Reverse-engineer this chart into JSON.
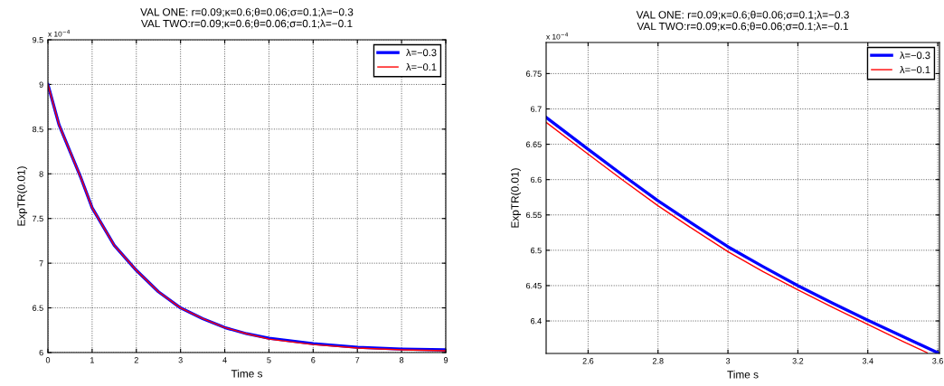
{
  "chart_data": [
    {
      "type": "line",
      "title": "VAL ONE: r=0.09;κ=0.6;θ=0.06;σ=0.1;λ=−0.3\nVAL TWO:r=0.09;κ=0.6;θ=0.06;σ=0.1;λ=−0.1",
      "xlabel": "Time s",
      "ylabel": "ExpTR(0.01)",
      "x": [
        0,
        0.25,
        0.5,
        0.75,
        1,
        1.5,
        2,
        2.5,
        3,
        3.5,
        4,
        4.5,
        5,
        6,
        7,
        8,
        9
      ],
      "series": [
        {
          "name": "λ=−0.3",
          "color": "#0000ff",
          "values": [
            9.0,
            8.55,
            8.25,
            7.95,
            7.62,
            7.2,
            6.92,
            6.68,
            6.5,
            6.38,
            6.28,
            6.21,
            6.16,
            6.1,
            6.06,
            6.04,
            6.03
          ]
        },
        {
          "name": "λ=−0.1",
          "color": "#ff0000",
          "values": [
            9.0,
            8.55,
            8.25,
            7.95,
            7.62,
            7.2,
            6.92,
            6.68,
            6.5,
            6.38,
            6.28,
            6.21,
            6.15,
            6.09,
            6.05,
            6.03,
            6.02
          ]
        }
      ],
      "xlim": [
        0,
        9
      ],
      "ylim": [
        6,
        9.5
      ],
      "xticks": [
        0,
        1,
        2,
        3,
        4,
        5,
        6,
        7,
        8,
        9
      ],
      "yticks": [
        6,
        6.5,
        7,
        7.5,
        8,
        8.5,
        9,
        9.5
      ],
      "annotations": [
        "x 10$^{−4}$"
      ],
      "grid": true,
      "legend": "top right",
      "line_style": "solid",
      "marker": "none"
    },
    {
      "type": "line",
      "title": "VAL ONE: r=0.09;κ=0.6;θ=0.06;σ=0.1;λ=−0.3\nVAL TWO:r=0.09;κ=0.6;θ=0.06;σ=0.1;λ=−0.1",
      "xlabel": "Time s",
      "ylabel": "ExpTR(0.01)",
      "x": [
        2.48,
        2.6,
        2.7,
        2.8,
        2.9,
        3.0,
        3.1,
        3.2,
        3.3,
        3.4,
        3.5,
        3.6
      ],
      "series": [
        {
          "name": "λ=−0.3",
          "color": "#0000ff",
          "values": [
            6.688,
            6.643,
            6.606,
            6.57,
            6.537,
            6.505,
            6.477,
            6.45,
            6.425,
            6.401,
            6.378,
            6.355
          ]
        },
        {
          "name": "λ=−0.1",
          "color": "#ff0000",
          "x": [
            2.48,
            2.6,
            2.7,
            2.8,
            2.9,
            3.0,
            3.1,
            3.2,
            3.3,
            3.4,
            3.5,
            3.57
          ],
          "values": [
            6.681,
            6.636,
            6.599,
            6.563,
            6.53,
            6.498,
            6.47,
            6.444,
            6.419,
            6.395,
            6.371,
            6.355
          ]
        }
      ],
      "xlim": [
        2.48,
        3.605
      ],
      "ylim": [
        6.354,
        6.794
      ],
      "xticks": [
        2.6,
        2.8,
        3,
        3.2,
        3.4,
        3.6
      ],
      "yticks": [
        6.4,
        6.45,
        6.5,
        6.55,
        6.6,
        6.65,
        6.7,
        6.75
      ],
      "annotations": [
        "x 10$^{−4}$"
      ],
      "grid": true,
      "legend": "top right",
      "line_style": "solid",
      "marker": "none"
    }
  ]
}
